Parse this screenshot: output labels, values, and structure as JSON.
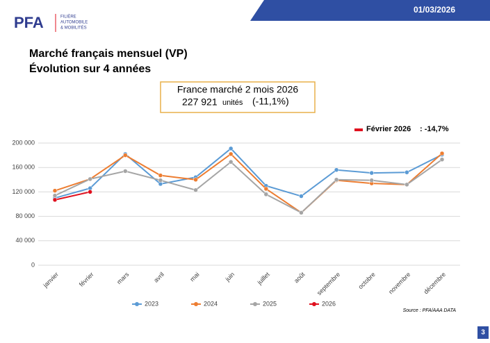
{
  "header": {
    "logo": "PFA",
    "logo_lines": [
      "FILIÈRE",
      "AUTOMOBILE",
      "& MOBILITÉS"
    ],
    "date": "01/03/2026"
  },
  "title_lines": [
    "Marché français mensuel (VP)",
    "Évolution sur 4 années"
  ],
  "summary": {
    "line1": "France marché 2 mois 2026",
    "volume": "227 921",
    "unit": "unités",
    "change": "(-11,1%)"
  },
  "annotation": {
    "label": "Février 2026",
    "value": ": -14,7%"
  },
  "source": "Source : PFA/AAA DATA",
  "page_number": "3",
  "chart_data": {
    "type": "line",
    "categories": [
      "janvier",
      "février",
      "mars",
      "avril",
      "mai",
      "juin",
      "juillet",
      "août",
      "septembre",
      "octobre",
      "novembre",
      "décembre"
    ],
    "series": [
      {
        "name": "2023",
        "color": "#5b9bd5",
        "values": [
          110000,
          126000,
          182000,
          133000,
          144000,
          191000,
          130000,
          113000,
          156000,
          151000,
          152000,
          181000
        ]
      },
      {
        "name": "2024",
        "color": "#ed7d31",
        "values": [
          122000,
          141000,
          180000,
          147000,
          140000,
          182000,
          125000,
          86000,
          139000,
          134000,
          132000,
          183000
        ]
      },
      {
        "name": "2025",
        "color": "#a5a5a5",
        "values": [
          114000,
          141000,
          154000,
          139000,
          123000,
          169000,
          116000,
          86000,
          140000,
          139000,
          132000,
          173000
        ]
      },
      {
        "name": "2026",
        "color": "#e0101e",
        "values": [
          107000,
          120000,
          null,
          null,
          null,
          null,
          null,
          null,
          null,
          null,
          null,
          null
        ]
      }
    ],
    "ylim": [
      0,
      200000
    ],
    "yticks": [
      0,
      {
        "value": 40000,
        "label": "40 000"
      },
      {
        "value": 80000,
        "label": "80 000"
      },
      {
        "value": 120000,
        "label": "120 000"
      },
      {
        "value": 160000,
        "label": "160 000"
      },
      {
        "value": 200000,
        "label": "200 000"
      }
    ],
    "grid": true
  }
}
